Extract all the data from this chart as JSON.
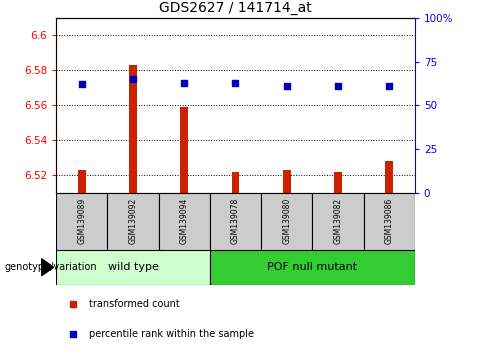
{
  "title": "GDS2627 / 141714_at",
  "samples": [
    "GSM139089",
    "GSM139092",
    "GSM139094",
    "GSM139078",
    "GSM139080",
    "GSM139082",
    "GSM139086"
  ],
  "transformed_counts": [
    6.523,
    6.583,
    6.559,
    6.522,
    6.523,
    6.522,
    6.528
  ],
  "percentile_ranks": [
    62,
    65,
    63,
    63,
    61,
    61,
    61
  ],
  "ylim_left": [
    6.51,
    6.61
  ],
  "ylim_right": [
    0,
    100
  ],
  "left_yticks": [
    6.52,
    6.54,
    6.56,
    6.58,
    6.6
  ],
  "right_yticks": [
    0,
    25,
    50,
    75,
    100
  ],
  "left_tick_labels": [
    "6.52",
    "6.54",
    "6.56",
    "6.58",
    "6.6"
  ],
  "right_tick_labels": [
    "0",
    "25",
    "50",
    "75",
    "100%"
  ],
  "groups": [
    {
      "label": "wild type",
      "indices": [
        0,
        1,
        2
      ],
      "color": "#CCFFCC"
    },
    {
      "label": "POF null mutant",
      "indices": [
        3,
        4,
        5,
        6
      ],
      "color": "#33CC33"
    }
  ],
  "bar_color": "#CC2200",
  "dot_color": "#0000BB",
  "bar_width": 0.15,
  "dot_size": 25,
  "grid_color": "black",
  "sample_box_color": "#CCCCCC",
  "group_label": "genotype/variation",
  "legend_items": [
    {
      "label": "transformed count",
      "color": "#CC2200",
      "marker": "s"
    },
    {
      "label": "percentile rank within the sample",
      "color": "#0000BB",
      "marker": "s"
    }
  ],
  "title_fontsize": 10,
  "tick_fontsize": 7.5,
  "label_fontsize": 7.5
}
